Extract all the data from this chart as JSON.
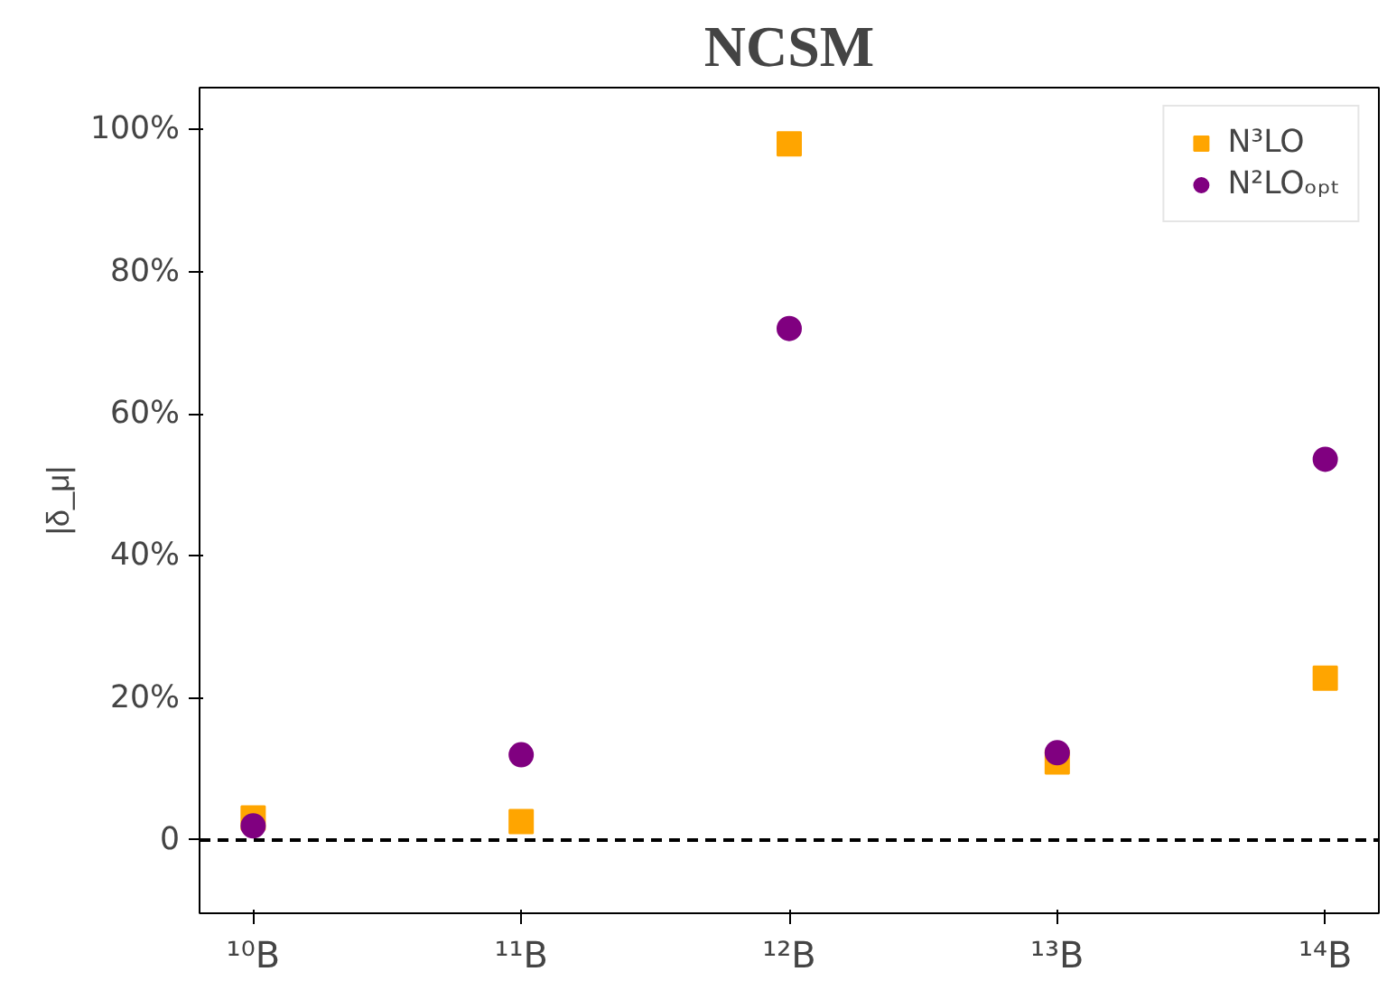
{
  "chart_data": {
    "type": "scatter",
    "title": "NCSM",
    "ylabel": "|δ_μ|",
    "categories": [
      "¹⁰B",
      "¹¹B",
      "¹²B",
      "¹³B",
      "¹⁴B"
    ],
    "series": [
      {
        "name": "N³LO",
        "color": "#ffa500",
        "marker": "square",
        "values": [
          3.1,
          2.6,
          98,
          11,
          22.8
        ]
      },
      {
        "name": "N²LOₒₚₜ",
        "color": "#800080",
        "marker": "circle",
        "values": [
          2,
          12,
          72,
          12.3,
          53.6
        ]
      }
    ],
    "ylim": [
      -10.3,
      105.9
    ],
    "yticks": [
      {
        "value": 0,
        "label": "0"
      },
      {
        "value": 20,
        "label": "20%"
      },
      {
        "value": 40,
        "label": "40%"
      },
      {
        "value": 60,
        "label": "60%"
      },
      {
        "value": 80,
        "label": "80%"
      },
      {
        "value": 100,
        "label": "100%"
      }
    ],
    "ref_lines": [
      {
        "axis": "y",
        "value": 0,
        "color": "#000000",
        "line_style": "dashed"
      }
    ],
    "grid": false,
    "legend": "top right"
  }
}
